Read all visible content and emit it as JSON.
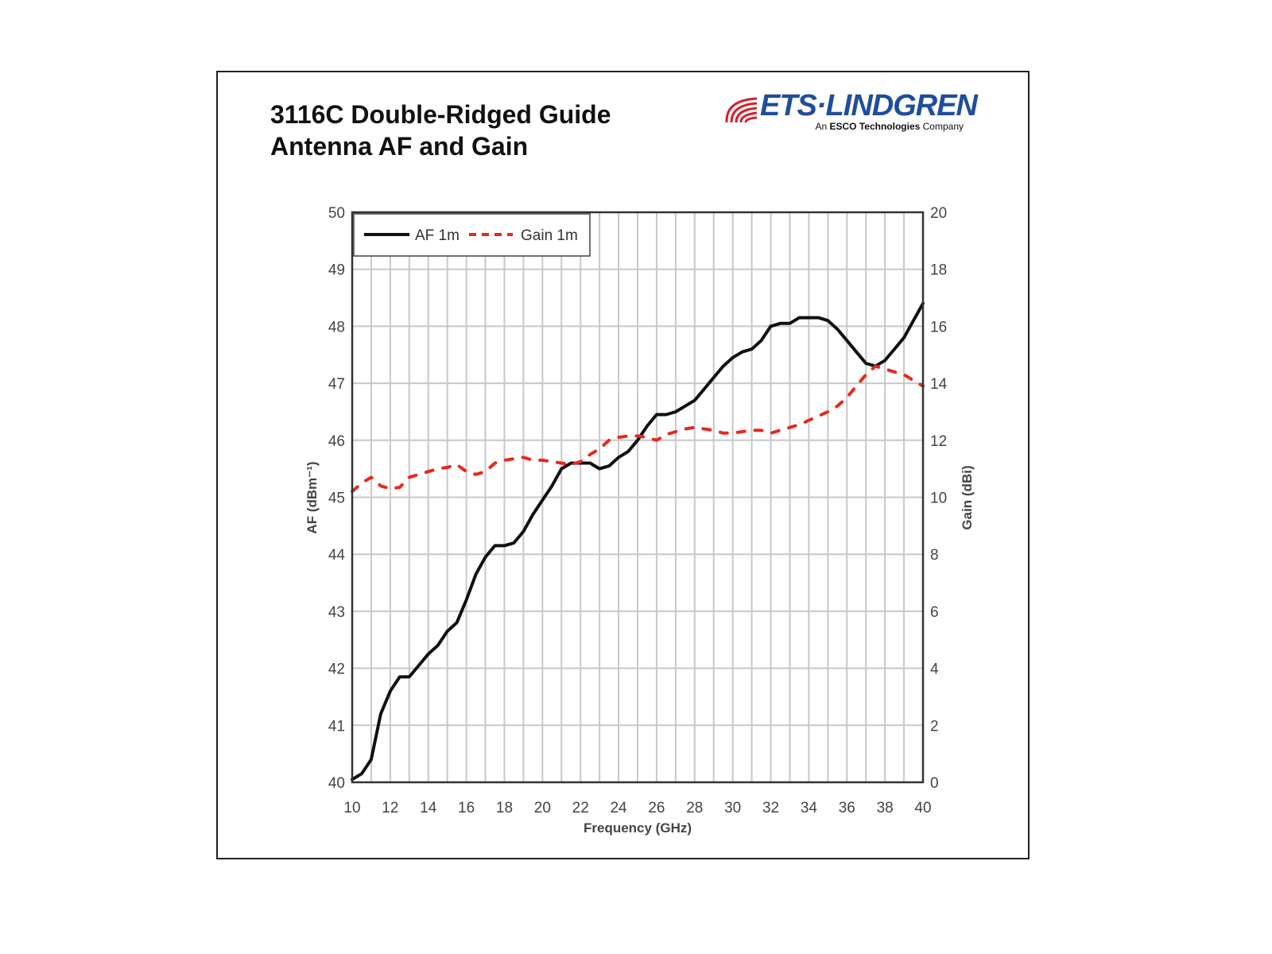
{
  "title_line1": "3116C Double-Ridged Guide",
  "title_line2": "Antenna AF and Gain",
  "logo": {
    "name": "ETS·LINDGREN",
    "registered": "®",
    "sub_prefix": "An",
    "sub_bold": "ESCO Technologies",
    "sub_suffix": "Company"
  },
  "colors": {
    "af": "#111111",
    "gain": "#e8281e",
    "logo_blue": "#1f4e9c",
    "logo_red": "#d3202e"
  },
  "chart_data": {
    "type": "line",
    "xlabel": "Frequency (GHz)",
    "ylabel": "AF (dBm⁻¹)",
    "y2label": "Gain (dBi)",
    "xlim": [
      10,
      40
    ],
    "ylim": [
      40,
      50
    ],
    "y2lim": [
      0,
      20
    ],
    "xticks": [
      10,
      12,
      14,
      16,
      18,
      20,
      22,
      24,
      26,
      28,
      30,
      32,
      34,
      36,
      38,
      40
    ],
    "yticks": [
      40,
      41,
      42,
      43,
      44,
      45,
      46,
      47,
      48,
      49,
      50
    ],
    "y2ticks": [
      0,
      2,
      4,
      6,
      8,
      10,
      12,
      14,
      16,
      18,
      20
    ],
    "grid": true,
    "legend_position": "top-left",
    "x": [
      10,
      10.5,
      11,
      11.5,
      12,
      12.5,
      13,
      13.5,
      14,
      14.5,
      15,
      15.5,
      16,
      16.5,
      17,
      17.5,
      18,
      18.5,
      19,
      19.5,
      20,
      20.5,
      21,
      21.5,
      22,
      22.5,
      23,
      23.5,
      24,
      24.5,
      25,
      25.5,
      26,
      26.5,
      27,
      27.5,
      28,
      28.5,
      29,
      29.5,
      30,
      30.5,
      31,
      31.5,
      32,
      32.5,
      33,
      33.5,
      34,
      34.5,
      35,
      35.5,
      36,
      36.5,
      37,
      37.5,
      38,
      38.5,
      39,
      39.5,
      40
    ],
    "series": [
      {
        "name": "AF 1m",
        "axis": "left",
        "style": "solid",
        "values": [
          40.05,
          40.15,
          40.4,
          41.2,
          41.6,
          41.85,
          41.85,
          42.05,
          42.25,
          42.4,
          42.65,
          42.8,
          43.2,
          43.65,
          43.95,
          44.15,
          44.15,
          44.2,
          44.4,
          44.7,
          44.95,
          45.2,
          45.5,
          45.6,
          45.6,
          45.6,
          45.5,
          45.55,
          45.7,
          45.8,
          46.0,
          46.25,
          46.45,
          46.45,
          46.5,
          46.6,
          46.7,
          46.9,
          47.1,
          47.3,
          47.45,
          47.55,
          47.6,
          47.75,
          48.0,
          48.05,
          48.05,
          48.15,
          48.15,
          48.15,
          48.1,
          47.95,
          47.75,
          47.55,
          47.35,
          47.3,
          47.4,
          47.6,
          47.8,
          48.1,
          48.4
        ]
      },
      {
        "name": "Gain 1m",
        "axis": "right",
        "style": "dashed",
        "values": [
          10.2,
          10.5,
          10.7,
          10.4,
          10.3,
          10.35,
          10.7,
          10.8,
          10.9,
          11.0,
          11.05,
          11.15,
          10.9,
          10.8,
          10.9,
          11.2,
          11.3,
          11.35,
          11.4,
          11.3,
          11.3,
          11.25,
          11.2,
          11.15,
          11.25,
          11.5,
          11.7,
          12.0,
          12.1,
          12.15,
          12.15,
          12.1,
          12.0,
          12.2,
          12.3,
          12.4,
          12.45,
          12.4,
          12.35,
          12.25,
          12.25,
          12.3,
          12.35,
          12.35,
          12.25,
          12.35,
          12.45,
          12.55,
          12.7,
          12.85,
          13.0,
          13.2,
          13.5,
          13.9,
          14.3,
          14.6,
          14.5,
          14.4,
          14.3,
          14.1,
          13.9
        ]
      }
    ]
  }
}
